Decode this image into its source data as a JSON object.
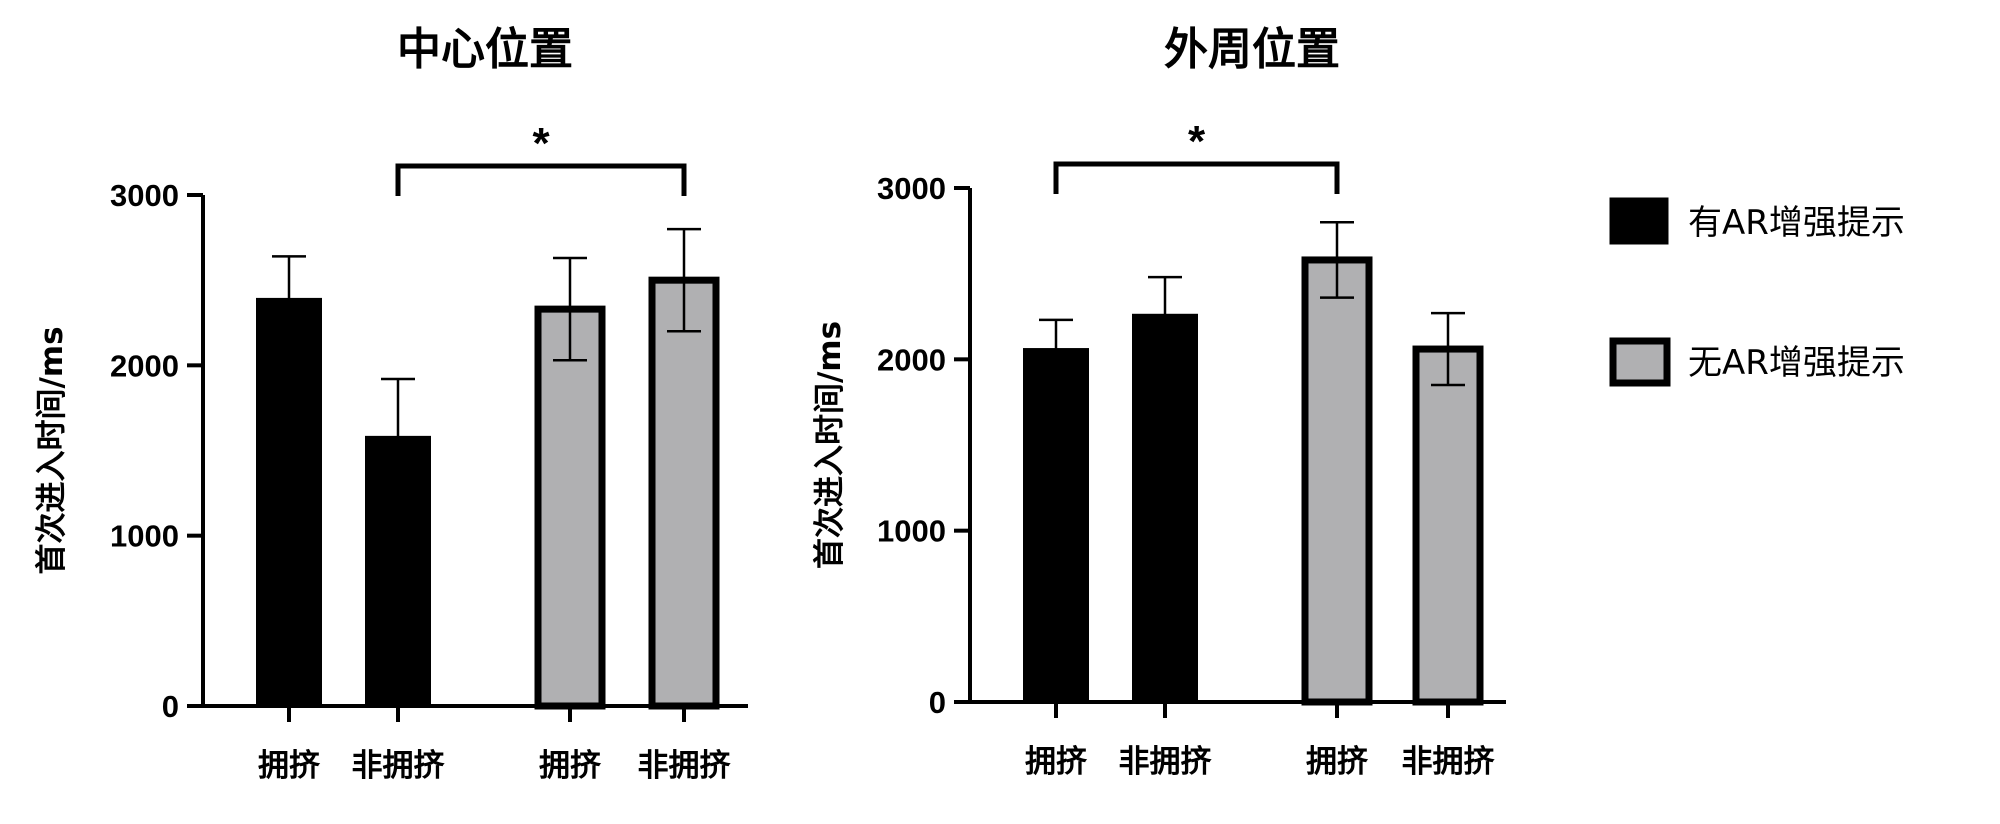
{
  "legend": [
    {
      "label": "有AR增强提示",
      "color": "#000000"
    },
    {
      "label": "无AR增强提示",
      "color": "#b0b0b2"
    }
  ],
  "chart_data": [
    {
      "type": "bar",
      "title": "中心位置",
      "ylabel": "首次进入时间/ms",
      "ylim": [
        0,
        3000
      ],
      "yticks": [
        "0",
        "1000",
        "2000",
        "3000"
      ],
      "categories": [
        "拥挤",
        "非拥挤",
        "拥挤",
        "非拥挤"
      ],
      "groups": [
        "有AR增强提示",
        "有AR增强提示",
        "无AR增强提示",
        "无AR增强提示"
      ],
      "values": [
        2390,
        1580,
        2330,
        2500
      ],
      "errors": [
        250,
        340,
        300,
        300
      ],
      "significance": {
        "from": 1,
        "to": 3,
        "label": "*"
      }
    },
    {
      "type": "bar",
      "title": "外周位置",
      "ylabel": "首次进入时间/ms",
      "ylim": [
        0,
        3000
      ],
      "yticks": [
        "0",
        "1000",
        "2000",
        "3000"
      ],
      "categories": [
        "拥挤",
        "非拥挤",
        "拥挤",
        "非拥挤"
      ],
      "groups": [
        "有AR增强提示",
        "有AR增强提示",
        "无AR增强提示",
        "无AR增强提示"
      ],
      "values": [
        2060,
        2260,
        2580,
        2060
      ],
      "errors": [
        170,
        220,
        220,
        210
      ],
      "significance": {
        "from": 0,
        "to": 2,
        "label": "*"
      }
    }
  ]
}
